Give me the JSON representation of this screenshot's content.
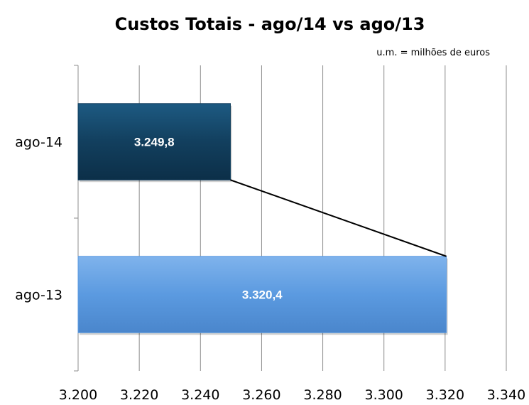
{
  "chart_data": {
    "type": "bar",
    "orientation": "horizontal",
    "title": "Custos Totais - ago/14 vs ago/13",
    "unit_note": "u.m. = milhões de euros",
    "categories": [
      "ago-14",
      "ago-13"
    ],
    "values": [
      3249.8,
      3320.4
    ],
    "data_labels": [
      "3.249,8",
      "3.320,4"
    ],
    "bar_colors": [
      "#123f5e",
      "#5b9ae0"
    ],
    "xlim": [
      3200,
      3340
    ],
    "x_ticks": [
      3200,
      3220,
      3240,
      3260,
      3280,
      3300,
      3320,
      3340
    ],
    "x_tick_labels": [
      "3.200",
      "3.220",
      "3.240",
      "3.260",
      "3.280",
      "3.300",
      "3.320",
      "3.340"
    ],
    "grid": true,
    "connector_line": true
  }
}
